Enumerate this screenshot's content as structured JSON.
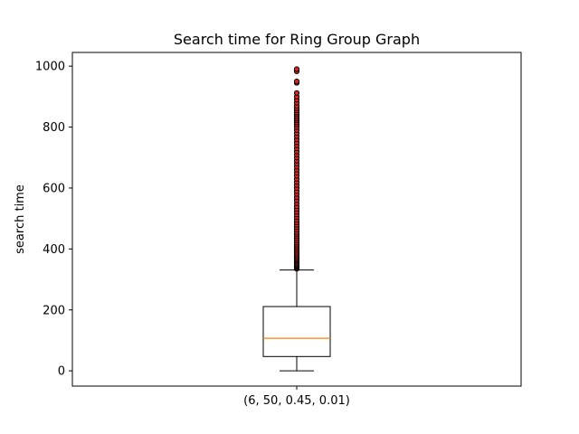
{
  "chart_data": {
    "type": "box",
    "title": "Search time for Ring Group Graph",
    "xlabel": "",
    "ylabel": "search time",
    "ylim": [
      -50,
      1045
    ],
    "yticks": [
      0,
      200,
      400,
      600,
      800,
      1000
    ],
    "categories": [
      "(6, 50, 0.45, 0.01)"
    ],
    "boxes": [
      {
        "category": "(6, 50, 0.45, 0.01)",
        "whisker_low": 0,
        "q1": 47,
        "median": 107,
        "q3": 211,
        "whisker_high": 331,
        "outliers": [
          335,
          338,
          341,
          344,
          347,
          350,
          354,
          358,
          362,
          366,
          370,
          375,
          380,
          385,
          390,
          396,
          402,
          408,
          414,
          420,
          427,
          434,
          441,
          448,
          455,
          463,
          471,
          479,
          487,
          495,
          504,
          513,
          522,
          531,
          540,
          550,
          560,
          570,
          580,
          590,
          600,
          610,
          620,
          630,
          640,
          650,
          660,
          670,
          680,
          690,
          700,
          710,
          720,
          730,
          740,
          750,
          760,
          770,
          780,
          790,
          800,
          808,
          815,
          822,
          828,
          835,
          842,
          848,
          855,
          862,
          870,
          880,
          890,
          900,
          912,
          945,
          950,
          983,
          990
        ]
      }
    ],
    "colors": {
      "box": "#000000",
      "median": "#ff7f0e",
      "outlier_edge": "#000000",
      "outlier_fill": "#d62728"
    }
  }
}
